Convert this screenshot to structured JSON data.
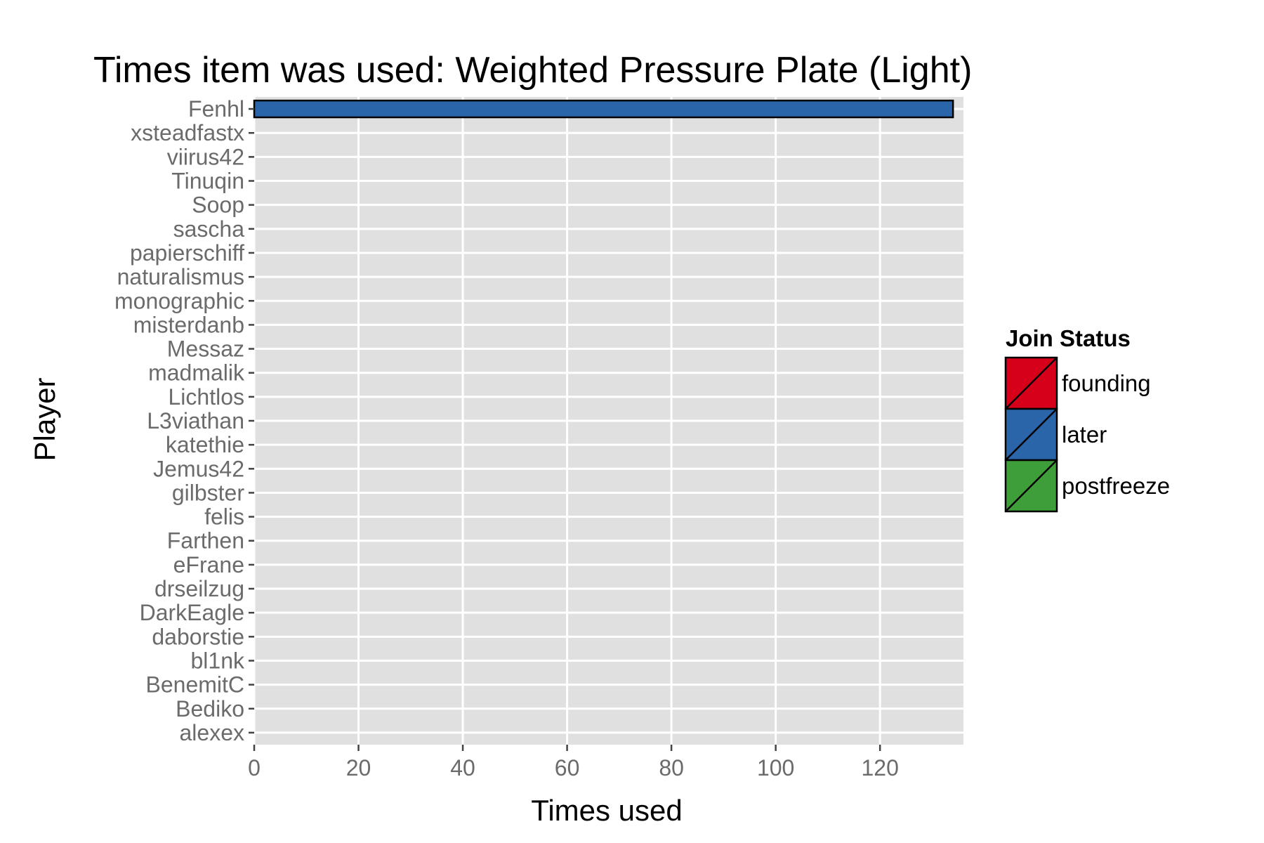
{
  "chart_data": {
    "type": "bar",
    "orientation": "horizontal",
    "title": "Times item was used: Weighted Pressure Plate (Light)",
    "xlabel": "Times used",
    "ylabel": "Player",
    "xlim": [
      0,
      136
    ],
    "xticks": [
      0,
      20,
      40,
      60,
      80,
      100,
      120
    ],
    "grid": true,
    "categories": [
      "Fenhl",
      "xsteadfastx",
      "viirus42",
      "Tinuqin",
      "Soop",
      "sascha",
      "papierschiff",
      "naturalismus",
      "monographic",
      "misterdanb",
      "Messaz",
      "madmalik",
      "Lichtlos",
      "L3viathan",
      "katethie",
      "Jemus42",
      "gilbster",
      "felis",
      "Farthen",
      "eFrane",
      "drseilzug",
      "DarkEagle",
      "daborstie",
      "bl1nk",
      "BenemitC",
      "Bediko",
      "alexex"
    ],
    "values": [
      134,
      0,
      0,
      0,
      0,
      0,
      0,
      0,
      0,
      0,
      0,
      0,
      0,
      0,
      0,
      0,
      0,
      0,
      0,
      0,
      0,
      0,
      0,
      0,
      0,
      0,
      0
    ],
    "status": [
      "later",
      "later",
      "later",
      "later",
      "later",
      "later",
      "later",
      "later",
      "later",
      "later",
      "later",
      "later",
      "later",
      "later",
      "later",
      "later",
      "later",
      "later",
      "later",
      "later",
      "later",
      "later",
      "later",
      "later",
      "later",
      "later",
      "later"
    ],
    "legend": {
      "title": "Join Status",
      "position": "right",
      "entries": [
        {
          "label": "founding",
          "color": "#d7001b"
        },
        {
          "label": "later",
          "color": "#2b65a9"
        },
        {
          "label": "postfreeze",
          "color": "#3e9e3a"
        }
      ]
    },
    "panel_color": "#e0e0e0",
    "grid_color": "#ffffff"
  }
}
